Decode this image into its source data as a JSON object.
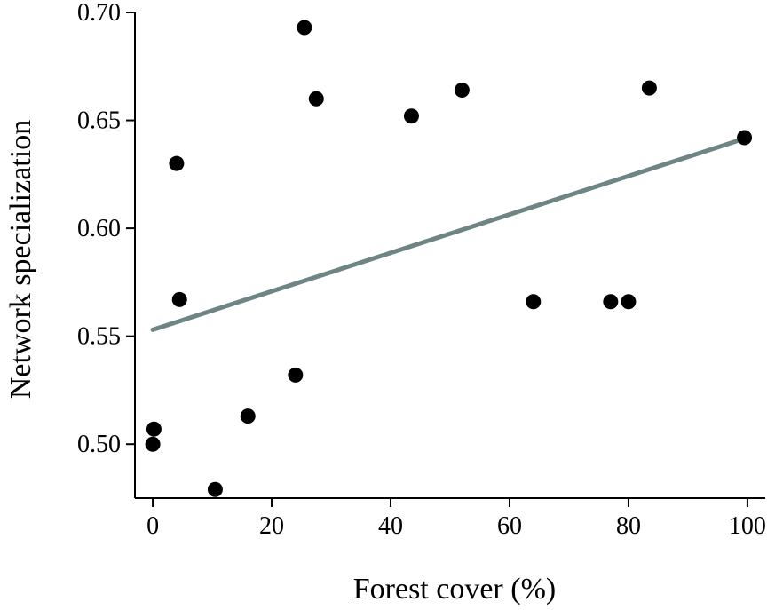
{
  "chart_data": {
    "type": "scatter",
    "xlabel": "Forest cover (%)",
    "ylabel": "Network specialization",
    "xlim": [
      -3,
      103
    ],
    "ylim": [
      0.475,
      0.7
    ],
    "xticks": [
      0,
      20,
      40,
      60,
      80,
      100
    ],
    "xtick_labels": [
      "0",
      "20",
      "40",
      "60",
      "80",
      "100"
    ],
    "yticks": [
      0.5,
      0.55,
      0.6,
      0.65,
      0.7
    ],
    "ytick_labels": [
      "0.50",
      "0.55",
      "0.60",
      "0.65",
      "0.70"
    ],
    "grid": false,
    "legend": "none",
    "points": [
      {
        "x": 0.0,
        "y": 0.5
      },
      {
        "x": 0.2,
        "y": 0.507
      },
      {
        "x": 4.0,
        "y": 0.63
      },
      {
        "x": 4.5,
        "y": 0.567
      },
      {
        "x": 10.5,
        "y": 0.479
      },
      {
        "x": 16.0,
        "y": 0.513
      },
      {
        "x": 24.0,
        "y": 0.532
      },
      {
        "x": 25.5,
        "y": 0.693
      },
      {
        "x": 27.5,
        "y": 0.66
      },
      {
        "x": 43.5,
        "y": 0.652
      },
      {
        "x": 52.0,
        "y": 0.664
      },
      {
        "x": 64.0,
        "y": 0.566
      },
      {
        "x": 77.0,
        "y": 0.566
      },
      {
        "x": 80.0,
        "y": 0.566
      },
      {
        "x": 83.5,
        "y": 0.665
      },
      {
        "x": 99.5,
        "y": 0.642
      }
    ],
    "trendline": {
      "x": [
        0,
        100
      ],
      "y": [
        0.553,
        0.642
      ],
      "color": "#6e8585"
    },
    "point_color": "#000000"
  }
}
